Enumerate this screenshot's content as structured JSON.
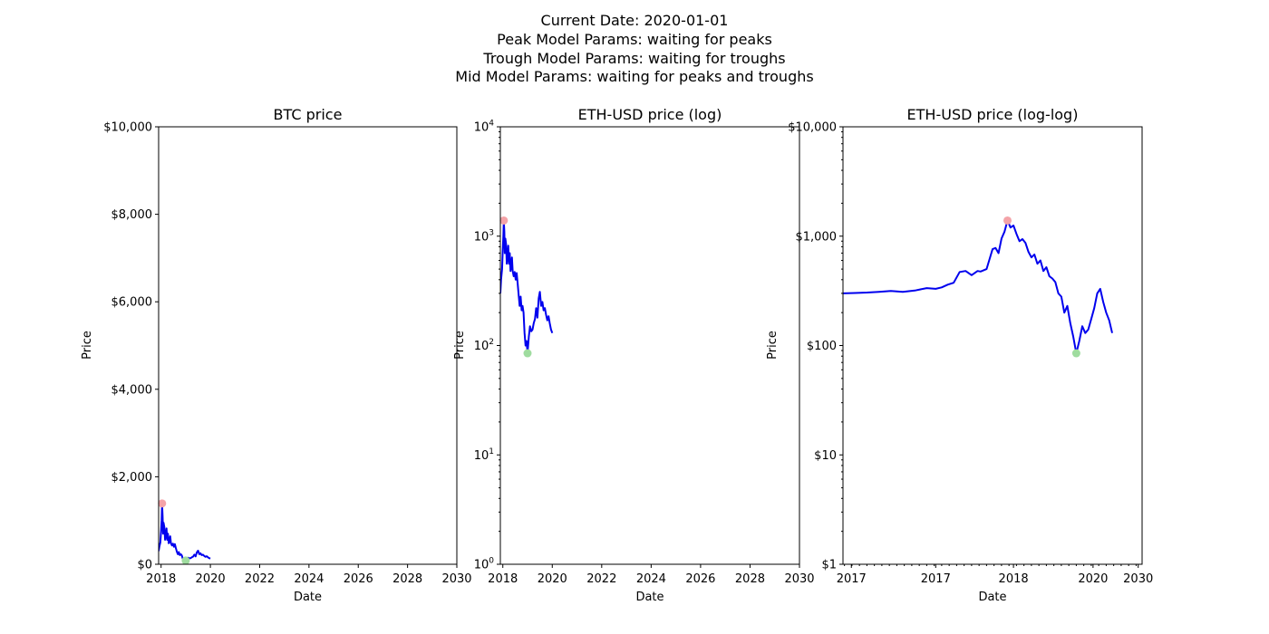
{
  "figure": {
    "suptitle_lines": [
      "Current Date: 2020-01-01",
      "Peak Model Params: waiting for peaks",
      "Trough Model Params: waiting for troughs",
      "Mid Model Params: waiting for peaks and troughs"
    ]
  },
  "colors": {
    "line": "#0000ee",
    "peak_marker": "#f4a3a8",
    "trough_marker": "#9fdc9f",
    "axes": "#000000",
    "background": "#ffffff"
  },
  "chart_data": [
    {
      "id": "btc",
      "type": "line",
      "title": "BTC price",
      "xlabel": "Date",
      "ylabel": "Price",
      "yscale": "linear",
      "xlim": [
        2017.9,
        2030.0
      ],
      "ylim": [
        0,
        10000
      ],
      "xticks": [
        {
          "value": 2018,
          "label": "2018"
        },
        {
          "value": 2020,
          "label": "2020"
        },
        {
          "value": 2022,
          "label": "2022"
        },
        {
          "value": 2024,
          "label": "2024"
        },
        {
          "value": 2026,
          "label": "2026"
        },
        {
          "value": 2028,
          "label": "2028"
        },
        {
          "value": 2030,
          "label": "2030"
        }
      ],
      "yticks": [
        {
          "value": 0,
          "label": "$0"
        },
        {
          "value": 2000,
          "label": "$2,000"
        },
        {
          "value": 4000,
          "label": "$4,000"
        },
        {
          "value": 6000,
          "label": "$6,000"
        },
        {
          "value": 8000,
          "label": "$8,000"
        },
        {
          "value": 10000,
          "label": "$10,000"
        }
      ],
      "series": [
        {
          "x": [
            2017.9,
            2017.93,
            2017.97,
            2018.0,
            2018.02,
            2018.04,
            2018.06,
            2018.08,
            2018.1,
            2018.13,
            2018.16,
            2018.19,
            2018.22,
            2018.25,
            2018.28,
            2018.31,
            2018.34,
            2018.37,
            2018.4,
            2018.44,
            2018.48,
            2018.52,
            2018.56,
            2018.6,
            2018.64,
            2018.68,
            2018.72,
            2018.76,
            2018.8,
            2018.84,
            2018.88,
            2018.92,
            2018.96,
            2019.0,
            2019.05,
            2019.1,
            2019.15,
            2019.2,
            2019.25,
            2019.3,
            2019.35,
            2019.4,
            2019.45,
            2019.5,
            2019.55,
            2019.6,
            2019.65,
            2019.7,
            2019.75,
            2019.8,
            2019.85,
            2019.9,
            2019.95,
            2020.0
          ],
          "y": [
            300,
            400,
            500,
            760,
            1000,
            1390,
            1100,
            700,
            950,
            850,
            560,
            650,
            820,
            560,
            700,
            480,
            520,
            640,
            480,
            430,
            470,
            400,
            460,
            370,
            290,
            230,
            280,
            210,
            230,
            200,
            130,
            100,
            110,
            85,
            120,
            150,
            135,
            140,
            160,
            175,
            220,
            180,
            270,
            310,
            230,
            250,
            210,
            220,
            190,
            170,
            185,
            160,
            140,
            130
          ]
        }
      ],
      "peaks": [
        {
          "x": 2018.04,
          "y": 1390
        }
      ],
      "troughs": [
        {
          "x": 2019.0,
          "y": 85
        }
      ]
    },
    {
      "id": "eth-log",
      "type": "line",
      "title": "ETH-USD price (log)",
      "xlabel": "Date",
      "ylabel": "Price",
      "yscale": "log",
      "xlim": [
        2017.9,
        2030.0
      ],
      "ylim": [
        1,
        10000
      ],
      "xticks": [
        {
          "value": 2018,
          "label": "2018"
        },
        {
          "value": 2020,
          "label": "2020"
        },
        {
          "value": 2022,
          "label": "2022"
        },
        {
          "value": 2024,
          "label": "2024"
        },
        {
          "value": 2026,
          "label": "2026"
        },
        {
          "value": 2028,
          "label": "2028"
        },
        {
          "value": 2030,
          "label": "2030"
        }
      ],
      "yticks": [
        {
          "value": 1,
          "base": "10",
          "exp": "0"
        },
        {
          "value": 10,
          "base": "10",
          "exp": "1"
        },
        {
          "value": 100,
          "base": "10",
          "exp": "2"
        },
        {
          "value": 1000,
          "base": "10",
          "exp": "3"
        },
        {
          "value": 10000,
          "base": "10",
          "exp": "4"
        }
      ],
      "series": [
        {
          "x": [
            2017.9,
            2017.93,
            2017.97,
            2018.0,
            2018.02,
            2018.04,
            2018.06,
            2018.08,
            2018.1,
            2018.13,
            2018.16,
            2018.19,
            2018.22,
            2018.25,
            2018.28,
            2018.31,
            2018.34,
            2018.37,
            2018.4,
            2018.44,
            2018.48,
            2018.52,
            2018.56,
            2018.6,
            2018.64,
            2018.68,
            2018.72,
            2018.76,
            2018.8,
            2018.84,
            2018.88,
            2018.92,
            2018.96,
            2019.0,
            2019.05,
            2019.1,
            2019.15,
            2019.2,
            2019.25,
            2019.3,
            2019.35,
            2019.4,
            2019.45,
            2019.5,
            2019.55,
            2019.6,
            2019.65,
            2019.7,
            2019.75,
            2019.8,
            2019.85,
            2019.9,
            2019.95,
            2020.0
          ],
          "y": [
            300,
            400,
            500,
            760,
            1000,
            1390,
            1100,
            700,
            950,
            850,
            560,
            650,
            820,
            560,
            700,
            480,
            520,
            640,
            480,
            430,
            470,
            400,
            460,
            370,
            290,
            230,
            280,
            210,
            230,
            200,
            130,
            100,
            110,
            85,
            120,
            150,
            135,
            140,
            160,
            175,
            220,
            180,
            270,
            310,
            230,
            250,
            210,
            220,
            190,
            170,
            185,
            160,
            140,
            130
          ]
        }
      ],
      "peaks": [
        {
          "x": 2018.04,
          "y": 1390
        }
      ],
      "troughs": [
        {
          "x": 2019.0,
          "y": 85
        }
      ]
    },
    {
      "id": "eth-loglog",
      "type": "line",
      "title": "ETH-USD price (log-log)",
      "xlabel": "Date",
      "ylabel": "Price",
      "yscale": "log",
      "xscale": "log",
      "xlim": [
        0.0,
        1.0
      ],
      "ylim": [
        1,
        10000
      ],
      "xticks": [
        {
          "value": 0.028,
          "label": "2017"
        },
        {
          "value": 0.31,
          "label": "2017"
        },
        {
          "value": 0.57,
          "label": "2018"
        },
        {
          "value": 0.836,
          "label": "2020"
        },
        {
          "value": 0.987,
          "label": "2030"
        }
      ],
      "yticks": [
        {
          "value": 1,
          "label": "$1"
        },
        {
          "value": 10,
          "label": "$10"
        },
        {
          "value": 100,
          "label": "$100"
        },
        {
          "value": 1000,
          "label": "$1,000"
        },
        {
          "value": 10000,
          "label": "$10,000"
        }
      ],
      "series": [
        {
          "x": [
            0.0,
            0.04,
            0.08,
            0.12,
            0.16,
            0.2,
            0.24,
            0.28,
            0.31,
            0.33,
            0.35,
            0.37,
            0.39,
            0.41,
            0.43,
            0.45,
            0.46,
            0.48,
            0.5,
            0.51,
            0.52,
            0.53,
            0.54,
            0.55,
            0.56,
            0.57,
            0.58,
            0.59,
            0.6,
            0.61,
            0.62,
            0.63,
            0.64,
            0.65,
            0.66,
            0.67,
            0.68,
            0.69,
            0.7,
            0.71,
            0.72,
            0.73,
            0.74,
            0.75,
            0.76,
            0.77,
            0.78,
            0.79,
            0.8,
            0.81,
            0.82,
            0.83,
            0.84,
            0.85,
            0.86,
            0.87,
            0.88,
            0.89,
            0.9
          ],
          "y": [
            300,
            302,
            305,
            310,
            316,
            310,
            318,
            335,
            330,
            340,
            360,
            375,
            470,
            480,
            440,
            480,
            475,
            500,
            760,
            780,
            700,
            950,
            1100,
            1390,
            1200,
            1250,
            1050,
            900,
            940,
            870,
            720,
            640,
            680,
            560,
            600,
            480,
            520,
            430,
            410,
            380,
            300,
            280,
            200,
            230,
            160,
            120,
            85,
            110,
            150,
            130,
            140,
            175,
            220,
            300,
            330,
            250,
            200,
            170,
            130
          ]
        }
      ],
      "peaks": [
        {
          "x": 0.55,
          "y": 1390
        }
      ],
      "troughs": [
        {
          "x": 0.78,
          "y": 85
        }
      ]
    }
  ]
}
